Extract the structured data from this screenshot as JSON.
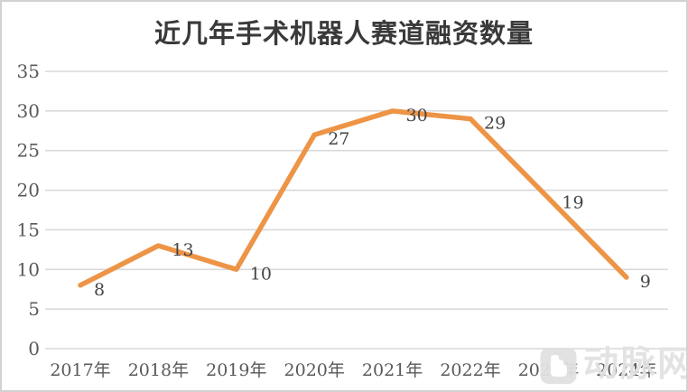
{
  "title": "近几年手术机器人赛道融资数量",
  "chart_data": {
    "type": "line",
    "title": "近几年手术机器人赛道融资数量",
    "categories": [
      "2017年",
      "2018年",
      "2019年",
      "2020年",
      "2021年",
      "2022年",
      "2023年",
      "2024年"
    ],
    "values": [
      8,
      13,
      10,
      27,
      30,
      29,
      19,
      9
    ],
    "series_name": "融资数量",
    "xlabel": "",
    "ylabel": "",
    "ylim": [
      0,
      35
    ],
    "yticks": [
      0,
      5,
      10,
      15,
      20,
      25,
      30,
      35
    ],
    "grid": true,
    "legend": "none",
    "data_labels_position": "right",
    "line_color": "#ED9446"
  },
  "watermark": {
    "text": "动脉网",
    "logo": "vcbeat-logo"
  },
  "colors": {
    "background": "#FFFFFF",
    "border": "#D2D2D2",
    "gridline": "#D9D9D9",
    "axis_text": "#595959",
    "data_label_text": "#454545",
    "title_text": "#3A3A3A",
    "line": "#ED9446",
    "watermark": "#E2E2E2"
  }
}
